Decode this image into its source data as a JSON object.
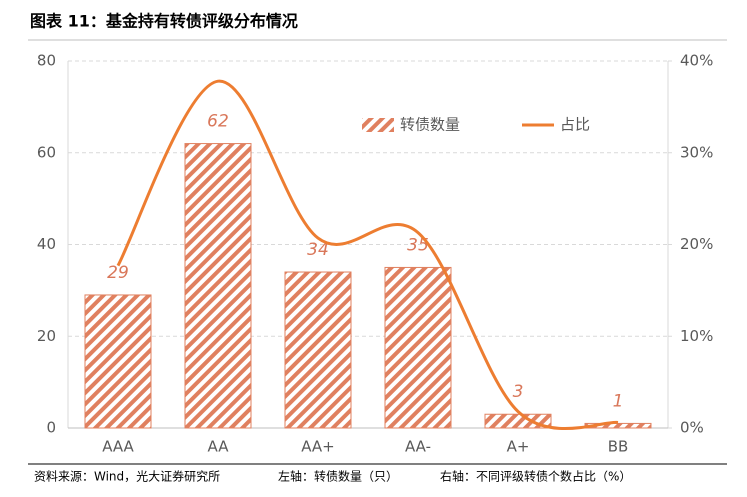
{
  "chart_data": {
    "type": "bar-line",
    "title": "图表 11：基金持有转债评级分布情况",
    "categories": [
      "AAA",
      "AA",
      "AA+",
      "AA-",
      "A+",
      "BB"
    ],
    "series": [
      {
        "name": "转债数量",
        "type": "bar",
        "color": "#e0805f",
        "values": [
          29,
          62,
          34,
          35,
          3,
          1
        ]
      },
      {
        "name": "占比",
        "type": "line",
        "axis": "y2",
        "color": "#ed7d31",
        "values": [
          17.7,
          37.8,
          20.7,
          21.3,
          1.8,
          0.6
        ]
      }
    ],
    "ylim": [
      0,
      80
    ],
    "yticks": [
      0,
      20,
      40,
      60,
      80
    ],
    "y2lim": [
      0,
      40
    ],
    "y2ticks": [
      {
        "value": 0,
        "label": "0%"
      },
      {
        "value": 10,
        "label": "10%"
      },
      {
        "value": 20,
        "label": "20%"
      },
      {
        "value": 30,
        "label": "30%"
      },
      {
        "value": 40,
        "label": "40%"
      }
    ],
    "grid": true,
    "annotations": [
      "资料来源：Wind，光大证券研究所",
      "左轴：转债数量（只）",
      "右轴：不同评级转债个数占比（%）"
    ]
  }
}
